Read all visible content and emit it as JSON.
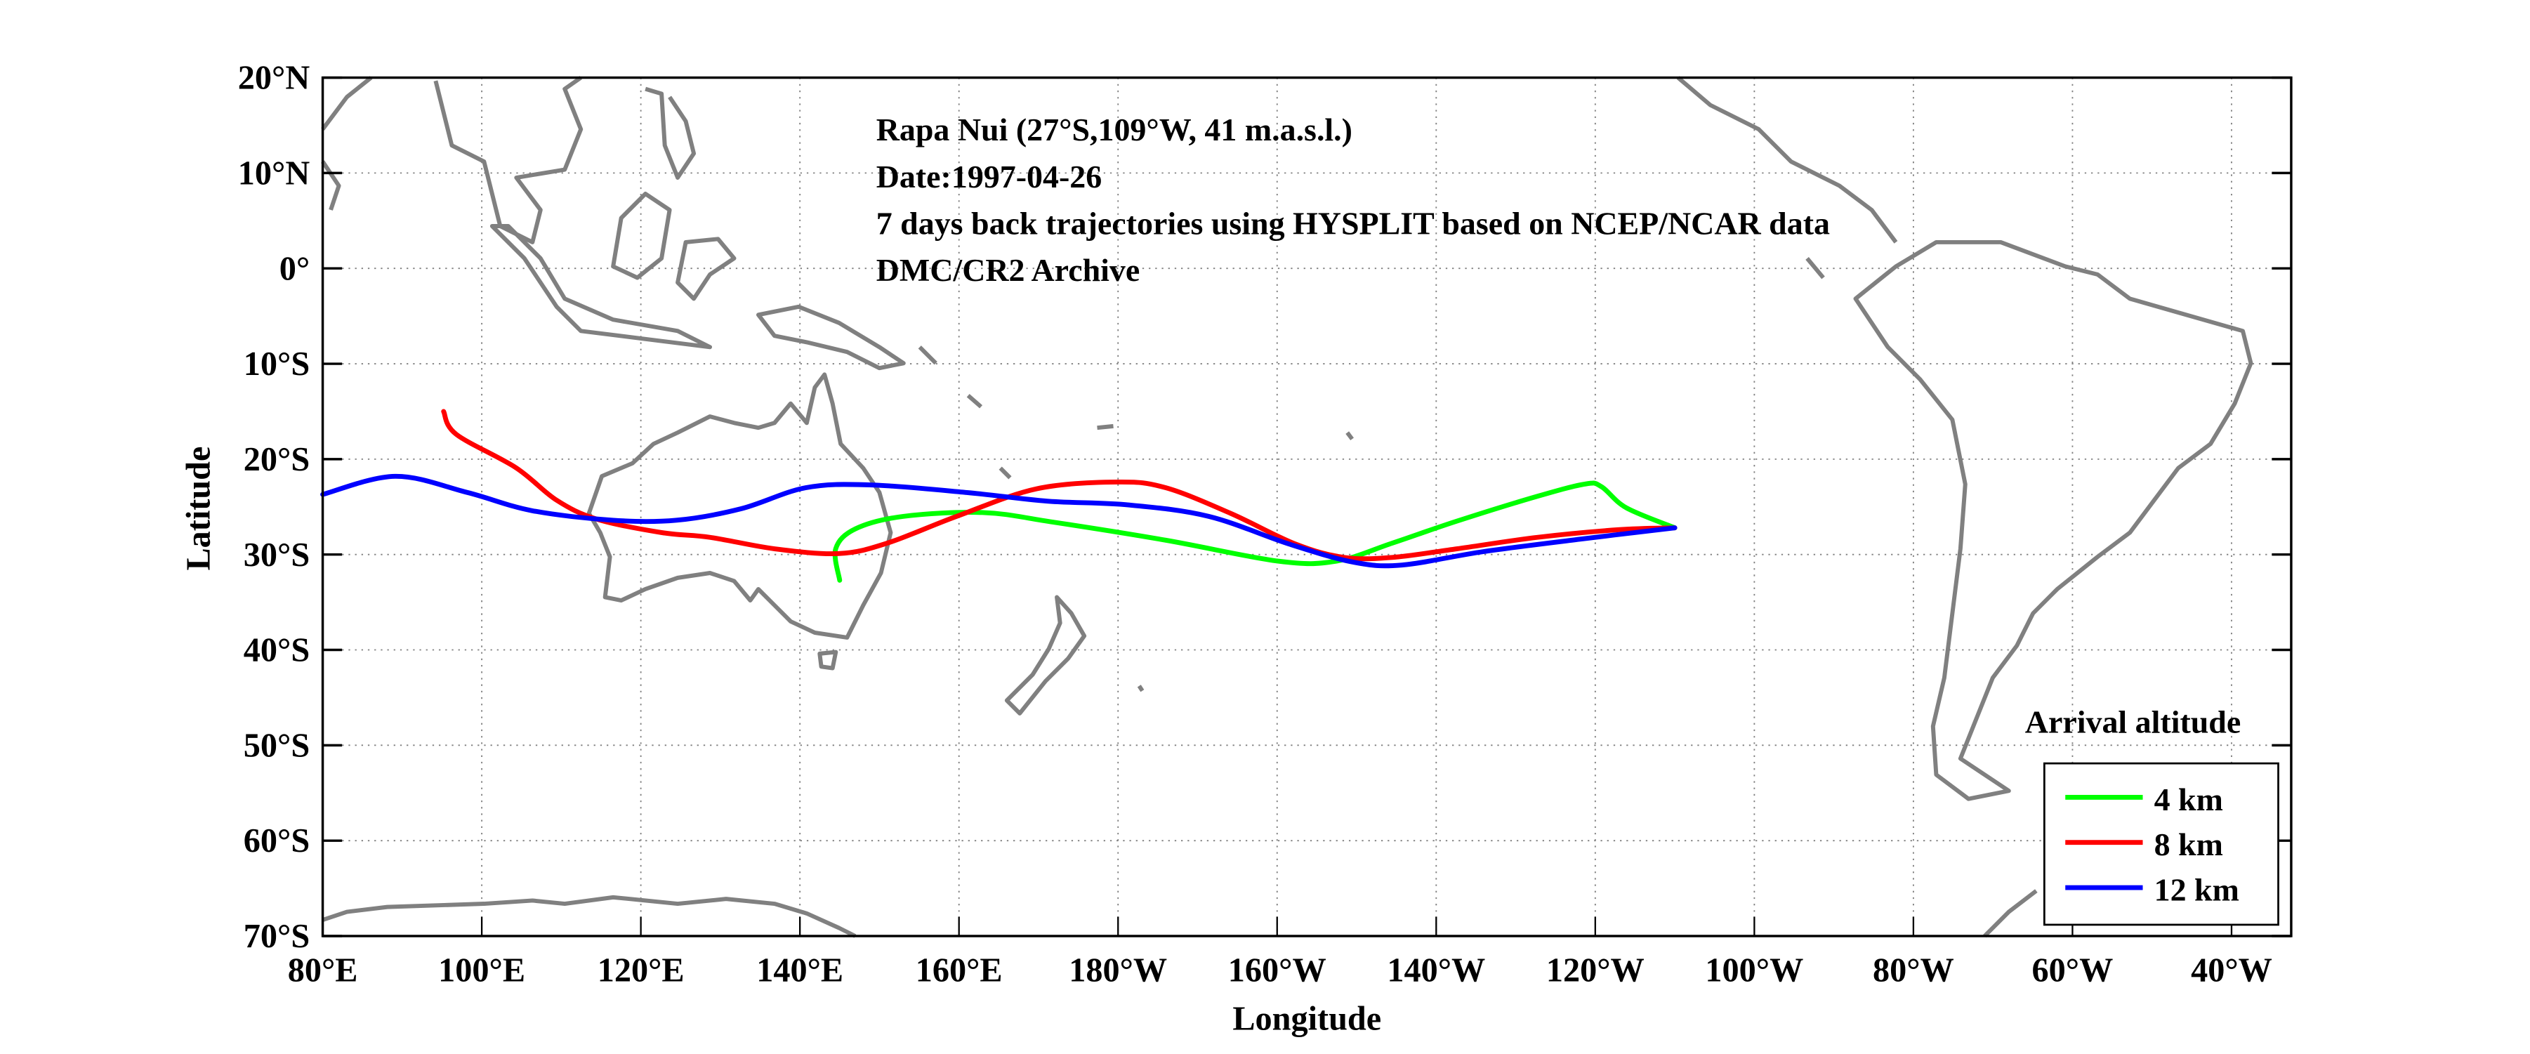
{
  "chart_data": {
    "type": "line",
    "title_lines": [
      "Rapa Nui (27°S,109°W, 41 m.a.s.l.)",
      "Date:1997-04-26",
      "7 days back trajectories using HYSPLIT based on NCEP/NCAR data",
      "DMC/CR2 Archive"
    ],
    "xlabel": "Longitude",
    "ylabel": "Latitude",
    "xlim_deg_east": [
      80,
      327.5
    ],
    "ylim": [
      -70,
      20
    ],
    "x_ticks": [
      {
        "value": 80,
        "label": "80°E"
      },
      {
        "value": 100,
        "label": "100°E"
      },
      {
        "value": 120,
        "label": "120°E"
      },
      {
        "value": 140,
        "label": "140°E"
      },
      {
        "value": 160,
        "label": "160°E"
      },
      {
        "value": 180,
        "label": "180°W"
      },
      {
        "value": 200,
        "label": "160°W"
      },
      {
        "value": 220,
        "label": "140°W"
      },
      {
        "value": 240,
        "label": "120°W"
      },
      {
        "value": 260,
        "label": "100°W"
      },
      {
        "value": 280,
        "label": "80°W"
      },
      {
        "value": 300,
        "label": "60°W"
      },
      {
        "value": 320,
        "label": "40°W"
      }
    ],
    "y_ticks": [
      {
        "value": 20,
        "label": "20°N"
      },
      {
        "value": 10,
        "label": "10°N"
      },
      {
        "value": 0,
        "label": "0°"
      },
      {
        "value": -10,
        "label": "10°S"
      },
      {
        "value": -20,
        "label": "20°S"
      },
      {
        "value": -30,
        "label": "30°S"
      },
      {
        "value": -40,
        "label": "40°S"
      },
      {
        "value": -50,
        "label": "50°S"
      },
      {
        "value": -60,
        "label": "60°S"
      },
      {
        "value": -70,
        "label": "70°S"
      }
    ],
    "grid": true,
    "legend": {
      "title": "Arrival altitude",
      "placement": "bottom-right"
    },
    "series": [
      {
        "name": "4 km",
        "color": "#00ff00",
        "lon": [
          145,
          144.5,
          147,
          153,
          163,
          171.8,
          186,
          200.2,
          207.4,
          214.5,
          222.6,
          232.7,
          238.8,
          240.8,
          243.9,
          250
        ],
        "lat": [
          -32.7,
          -29.4,
          -27.3,
          -26,
          -25.6,
          -26.6,
          -28.5,
          -30.7,
          -30.7,
          -28.8,
          -26.5,
          -23.9,
          -22.6,
          -22.9,
          -25.1,
          -27.2
        ]
      },
      {
        "name": "8 km",
        "color": "#ff0000",
        "lon": [
          95.2,
          96.8,
          104.3,
          109.4,
          114.5,
          122.6,
          128.7,
          136.8,
          144.9,
          151,
          159.7,
          169.8,
          180,
          186,
          194.2,
          202.3,
          208.4,
          214.5,
          222.6,
          232.7,
          242.9,
          250
        ],
        "lat": [
          -15,
          -17.4,
          -20.9,
          -24.3,
          -26.3,
          -27.7,
          -28.2,
          -29.4,
          -29.9,
          -28.8,
          -26,
          -23.1,
          -22.4,
          -23,
          -25.7,
          -28.9,
          -30.3,
          -30.3,
          -29.4,
          -28.2,
          -27.4,
          -27.2
        ]
      },
      {
        "name": "12 km",
        "color": "#0000ff",
        "lon": [
          80,
          89.1,
          98.2,
          106.3,
          116.4,
          124.5,
          132.6,
          140.7,
          148.8,
          161,
          171.1,
          181.3,
          191.4,
          201.5,
          209.6,
          215.7,
          225.9,
          238,
          250
        ],
        "lat": [
          -23.7,
          -21.8,
          -23.5,
          -25.4,
          -26.4,
          -26.4,
          -25.2,
          -23,
          -22.7,
          -23.5,
          -24.4,
          -24.8,
          -26,
          -28.9,
          -30.8,
          -31.1,
          -29.7,
          -28.4,
          -27.2
        ]
      }
    ]
  },
  "colors": {
    "coast": "#808080",
    "grid": "#808080"
  }
}
